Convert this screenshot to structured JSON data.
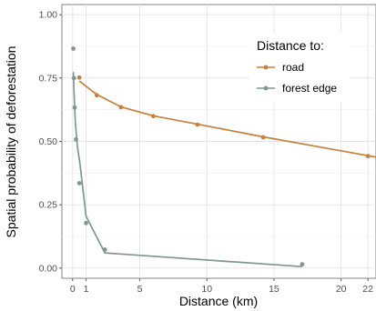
{
  "chart_data": {
    "type": "line",
    "xlabel": "Distance (km)",
    "ylabel": "Spatial probability of deforestation",
    "xlim": [
      -0.8,
      22.6
    ],
    "ylim": [
      -0.04,
      1.04
    ],
    "x_ticks": [
      0,
      1,
      5,
      10,
      15,
      20,
      22
    ],
    "y_ticks": [
      0.0,
      0.25,
      0.5,
      0.75,
      1.0
    ],
    "y_tick_labels": [
      "0.00",
      "0.25",
      "0.50",
      "0.75",
      "1.00"
    ],
    "grid": true,
    "legend": {
      "title": "Distance to:",
      "position": "top-right"
    },
    "series": [
      {
        "name": "road",
        "color": "#c8803a",
        "points": [
          {
            "x": 0.5,
            "y": 0.752
          },
          {
            "x": 1.8,
            "y": 0.682
          },
          {
            "x": 3.6,
            "y": 0.635
          },
          {
            "x": 6.0,
            "y": 0.6
          },
          {
            "x": 9.3,
            "y": 0.566
          },
          {
            "x": 14.2,
            "y": 0.516
          },
          {
            "x": 22.0,
            "y": 0.442
          }
        ],
        "line": [
          {
            "x": 0.5,
            "y": 0.738
          },
          {
            "x": 1.8,
            "y": 0.685
          },
          {
            "x": 3.6,
            "y": 0.636
          },
          {
            "x": 6.0,
            "y": 0.601
          },
          {
            "x": 9.3,
            "y": 0.568
          },
          {
            "x": 14.2,
            "y": 0.518
          },
          {
            "x": 22.6,
            "y": 0.438
          }
        ]
      },
      {
        "name": "forest edge",
        "color": "#7f9692",
        "points": [
          {
            "x": 0.05,
            "y": 0.866
          },
          {
            "x": 0.1,
            "y": 0.75
          },
          {
            "x": 0.15,
            "y": 0.634
          },
          {
            "x": 0.25,
            "y": 0.508
          },
          {
            "x": 0.5,
            "y": 0.335
          },
          {
            "x": 1.0,
            "y": 0.178
          },
          {
            "x": 2.4,
            "y": 0.073
          },
          {
            "x": 17.1,
            "y": 0.015
          }
        ],
        "line": [
          {
            "x": 0.05,
            "y": 0.774
          },
          {
            "x": 0.1,
            "y": 0.7
          },
          {
            "x": 0.2,
            "y": 0.575
          },
          {
            "x": 0.35,
            "y": 0.482
          },
          {
            "x": 0.55,
            "y": 0.41
          },
          {
            "x": 1.0,
            "y": 0.205
          },
          {
            "x": 2.4,
            "y": 0.06
          },
          {
            "x": 17.1,
            "y": 0.006
          }
        ]
      }
    ]
  }
}
